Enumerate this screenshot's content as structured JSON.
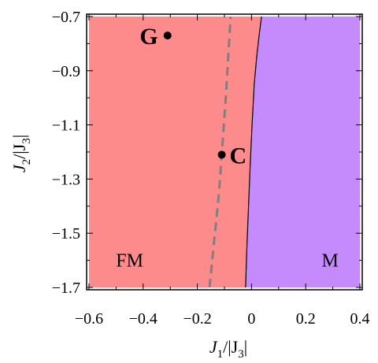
{
  "chart_data": {
    "type": "phase-diagram",
    "xlabel": {
      "base": "J",
      "sub": "1",
      "rest": "/|J",
      "sub2": "3",
      "end": "|"
    },
    "ylabel": {
      "base": "J",
      "sub": "2",
      "rest": "/|J",
      "sub2": "3",
      "end": "|"
    },
    "xlim": [
      -0.6,
      0.4
    ],
    "ylim": [
      -1.7,
      -0.7
    ],
    "xticks": [
      -0.6,
      -0.4,
      -0.2,
      0,
      0.2,
      0.4
    ],
    "xtick_labels": [
      "−0.6",
      "−0.4",
      "−0.2",
      "0",
      "0.2",
      "0.4"
    ],
    "yticks": [
      -0.7,
      -0.9,
      -1.1,
      -1.3,
      -1.5,
      -1.7
    ],
    "ytick_labels": [
      "−0.7",
      "−0.9",
      "−1.1",
      "−1.3",
      "−1.5",
      "−1.7"
    ],
    "grid": false,
    "regions": [
      {
        "label": "FM",
        "color": "#fd8b8b",
        "label_at": [
          -0.45,
          -1.6
        ]
      },
      {
        "label": "M",
        "color": "#c58bfd",
        "label_at": [
          0.29,
          -1.6
        ]
      }
    ],
    "phase_boundary": {
      "color": "#000000",
      "x": [
        -0.022,
        -0.017,
        -0.011,
        -0.005,
        0.002,
        0.01,
        0.019,
        0.028,
        0.037
      ],
      "y": [
        -1.7,
        -1.55,
        -1.4,
        -1.25,
        -1.1,
        -0.95,
        -0.85,
        -0.77,
        -0.7
      ]
    },
    "dashed_line": {
      "color": "#808080",
      "x": [
        -0.155,
        -0.12,
        -0.095,
        -0.077
      ],
      "y": [
        -1.7,
        -1.35,
        -1.0,
        -0.7
      ]
    },
    "points": [
      {
        "label": "G",
        "x": -0.31,
        "y": -0.77
      },
      {
        "label": "C",
        "x": -0.11,
        "y": -1.21
      }
    ]
  }
}
